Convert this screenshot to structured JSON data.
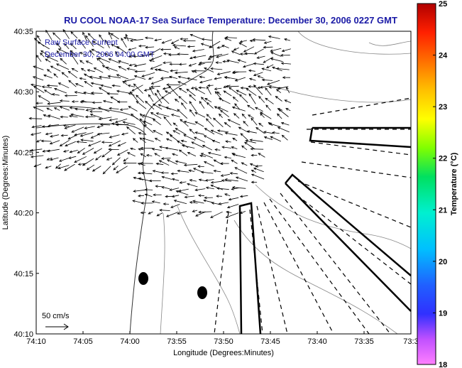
{
  "chart_data": {
    "type": "vector-field-map",
    "title": "RU COOL  NOAA-17  Sea Surface Temperature:  December 30, 2006 0227 GMT",
    "xlabel": "Longitude (Degrees:Minutes)",
    "ylabel": "Latitude (Degrees:Minutes)",
    "x_ticks": [
      "74:10",
      "74:05",
      "74:00",
      "73:55",
      "73:50",
      "73:45",
      "73:40",
      "73:35",
      "73:3"
    ],
    "y_ticks": [
      "40:35",
      "40:30",
      "40:25",
      "40:20",
      "40:15",
      "40:10"
    ],
    "annotations": [
      "Raw Surface Current",
      "December 30, 2006 04:00 GMT"
    ],
    "scale_label": "50 cm/s",
    "colorbar": {
      "label": "Temperature (°C)",
      "ticks": [
        "25",
        "24",
        "23",
        "22",
        "21",
        "20",
        "19",
        "18"
      ],
      "min": 18,
      "max": 25
    },
    "grid": false
  }
}
